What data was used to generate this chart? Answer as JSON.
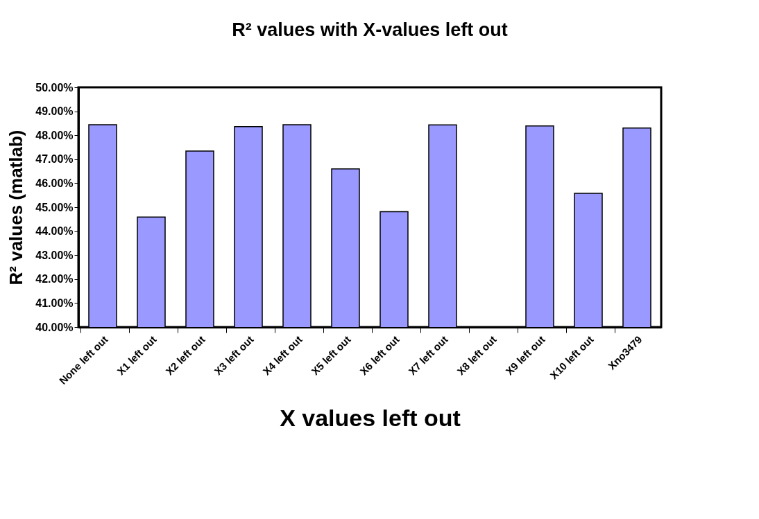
{
  "chart_data": {
    "type": "bar",
    "title": "R² values with X-values left out",
    "xlabel": "X values left out",
    "ylabel": "R² values (matlab)",
    "categories": [
      "None left out",
      "X1 left out",
      "X2 left out",
      "X3 left out",
      "X4 left out",
      "X5 left out",
      "X6 left out",
      "X7 left out",
      "X8 left out",
      "X9 left out",
      "X10 left out",
      "Xno3479"
    ],
    "values": [
      48.44,
      44.59,
      47.34,
      48.36,
      48.44,
      46.6,
      44.81,
      48.43,
      null,
      48.39,
      45.58,
      48.3
    ],
    "color": "#9999ff",
    "ylim": [
      40,
      50
    ],
    "yticks": [
      {
        "value": 40,
        "label": "40.00%"
      },
      {
        "value": 41,
        "label": "41.00%"
      },
      {
        "value": 42,
        "label": "42.00%"
      },
      {
        "value": 43,
        "label": "43.00%"
      },
      {
        "value": 44,
        "label": "44.00%"
      },
      {
        "value": 45,
        "label": "45.00%"
      },
      {
        "value": 46,
        "label": "46.00%"
      },
      {
        "value": 47,
        "label": "47.00%"
      },
      {
        "value": 48,
        "label": "48.00%"
      },
      {
        "value": 49,
        "label": "49.00%"
      },
      {
        "value": 50,
        "label": "50.00%"
      }
    ],
    "grid": false
  }
}
